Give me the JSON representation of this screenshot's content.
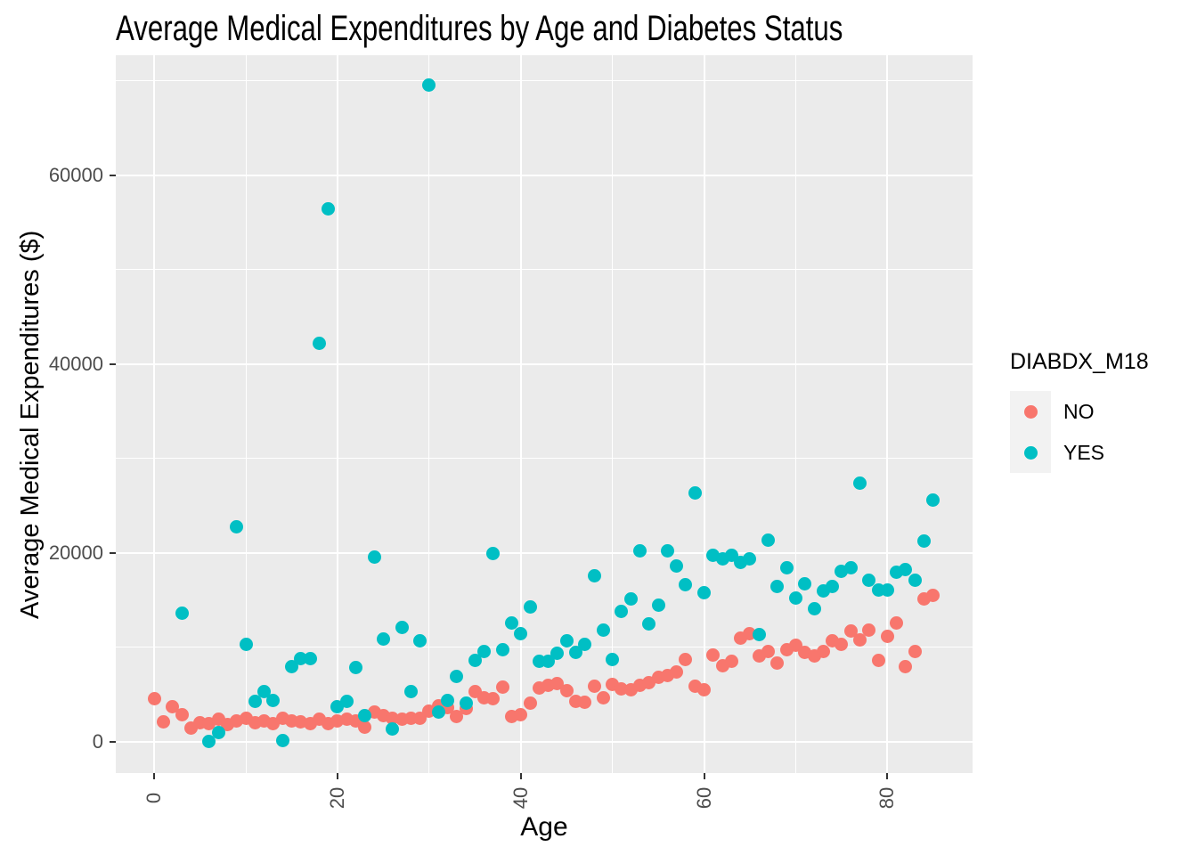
{
  "title": "Average Medical Expenditures by Age and Diabetes Status",
  "panel": {
    "background": "#EBEBEB",
    "gridline_color": "#ffffff"
  },
  "x_axis": {
    "label": "Age",
    "ticks": [
      0,
      20,
      40,
      60,
      80
    ],
    "tick_labels": [
      "0",
      "20",
      "40",
      "60",
      "80"
    ],
    "minor_ticks": [
      10,
      30,
      50,
      70
    ],
    "range": [
      -4.2,
      89.3
    ]
  },
  "y_axis": {
    "label": "Average Medical Expenditures ($)",
    "ticks": [
      0,
      20000,
      40000,
      60000
    ],
    "tick_labels": [
      "0",
      "20000",
      "40000",
      "60000"
    ],
    "minor_ticks": [
      10000,
      30000,
      50000,
      70000
    ],
    "range": [
      -3300,
      72700
    ]
  },
  "legend": {
    "title": "DIABDX_M18",
    "items": [
      {
        "label": "NO",
        "color": "#F8766D"
      },
      {
        "label": "YES",
        "color": "#00BFC4"
      }
    ]
  },
  "chart_data": {
    "type": "scatter",
    "title": "Average Medical Expenditures by Age and Diabetes Status",
    "xlabel": "Age",
    "ylabel": "Average Medical Expenditures ($)",
    "xlim": [
      -4.2,
      89.3
    ],
    "ylim": [
      -3300,
      72700
    ],
    "grid": true,
    "legend_position": "right",
    "legend_title": "DIABDX_M18",
    "series": [
      {
        "name": "NO",
        "color": "#F8766D",
        "points": [
          [
            0,
            4600
          ],
          [
            1,
            2100
          ],
          [
            2,
            3700
          ],
          [
            3,
            2900
          ],
          [
            4,
            1500
          ],
          [
            5,
            2000
          ],
          [
            6,
            1900
          ],
          [
            7,
            2400
          ],
          [
            8,
            1800
          ],
          [
            9,
            2200
          ],
          [
            10,
            2500
          ],
          [
            11,
            2000
          ],
          [
            12,
            2200
          ],
          [
            13,
            1900
          ],
          [
            14,
            2500
          ],
          [
            15,
            2200
          ],
          [
            16,
            2100
          ],
          [
            17,
            1900
          ],
          [
            18,
            2400
          ],
          [
            19,
            1900
          ],
          [
            20,
            2200
          ],
          [
            21,
            2400
          ],
          [
            22,
            2200
          ],
          [
            23,
            1600
          ],
          [
            24,
            3200
          ],
          [
            25,
            2800
          ],
          [
            26,
            2500
          ],
          [
            27,
            2400
          ],
          [
            28,
            2500
          ],
          [
            29,
            2500
          ],
          [
            30,
            3300
          ],
          [
            31,
            3800
          ],
          [
            32,
            3600
          ],
          [
            33,
            2700
          ],
          [
            34,
            3500
          ],
          [
            35,
            5300
          ],
          [
            36,
            4700
          ],
          [
            37,
            4600
          ],
          [
            38,
            5800
          ],
          [
            39,
            2700
          ],
          [
            40,
            2900
          ],
          [
            41,
            4100
          ],
          [
            42,
            5700
          ],
          [
            43,
            6000
          ],
          [
            44,
            6200
          ],
          [
            45,
            5400
          ],
          [
            46,
            4300
          ],
          [
            47,
            4200
          ],
          [
            48,
            5900
          ],
          [
            49,
            4700
          ],
          [
            50,
            6100
          ],
          [
            51,
            5600
          ],
          [
            52,
            5500
          ],
          [
            53,
            6000
          ],
          [
            54,
            6300
          ],
          [
            55,
            6800
          ],
          [
            56,
            7000
          ],
          [
            57,
            7400
          ],
          [
            58,
            8700
          ],
          [
            59,
            5900
          ],
          [
            60,
            5500
          ],
          [
            61,
            9200
          ],
          [
            62,
            8100
          ],
          [
            63,
            8500
          ],
          [
            64,
            11000
          ],
          [
            65,
            11500
          ],
          [
            66,
            9100
          ],
          [
            67,
            9600
          ],
          [
            68,
            8300
          ],
          [
            69,
            9800
          ],
          [
            70,
            10200
          ],
          [
            71,
            9500
          ],
          [
            72,
            9100
          ],
          [
            73,
            9600
          ],
          [
            74,
            10700
          ],
          [
            75,
            10300
          ],
          [
            76,
            11700
          ],
          [
            77,
            10800
          ],
          [
            78,
            11800
          ],
          [
            79,
            8600
          ],
          [
            80,
            11200
          ],
          [
            81,
            12600
          ],
          [
            82,
            8000
          ],
          [
            83,
            9600
          ],
          [
            84,
            15100
          ],
          [
            85,
            15500
          ]
        ]
      },
      {
        "name": "YES",
        "color": "#00BFC4",
        "points": [
          [
            3,
            13600
          ],
          [
            6,
            50
          ],
          [
            7,
            1000
          ],
          [
            9,
            22800
          ],
          [
            10,
            10300
          ],
          [
            11,
            4300
          ],
          [
            12,
            5300
          ],
          [
            13,
            4400
          ],
          [
            14,
            100
          ],
          [
            15,
            8000
          ],
          [
            16,
            8800
          ],
          [
            17,
            8800
          ],
          [
            18,
            42200
          ],
          [
            19,
            56400
          ],
          [
            20,
            3700
          ],
          [
            21,
            4300
          ],
          [
            22,
            7900
          ],
          [
            23,
            2800
          ],
          [
            24,
            19600
          ],
          [
            25,
            10900
          ],
          [
            26,
            1400
          ],
          [
            27,
            12100
          ],
          [
            28,
            5300
          ],
          [
            29,
            10700
          ],
          [
            30,
            69500
          ],
          [
            31,
            3200
          ],
          [
            32,
            4400
          ],
          [
            33,
            6900
          ],
          [
            34,
            4100
          ],
          [
            35,
            8600
          ],
          [
            36,
            9600
          ],
          [
            37,
            19900
          ],
          [
            38,
            9800
          ],
          [
            39,
            12600
          ],
          [
            40,
            11500
          ],
          [
            41,
            14300
          ],
          [
            42,
            8500
          ],
          [
            43,
            8500
          ],
          [
            44,
            9400
          ],
          [
            45,
            10700
          ],
          [
            46,
            9500
          ],
          [
            47,
            10300
          ],
          [
            48,
            17600
          ],
          [
            49,
            11800
          ],
          [
            50,
            8700
          ],
          [
            51,
            13800
          ],
          [
            52,
            15100
          ],
          [
            53,
            20200
          ],
          [
            54,
            12500
          ],
          [
            55,
            14500
          ],
          [
            56,
            20200
          ],
          [
            57,
            18600
          ],
          [
            58,
            16600
          ],
          [
            59,
            26400
          ],
          [
            60,
            15800
          ],
          [
            61,
            19800
          ],
          [
            62,
            19400
          ],
          [
            63,
            19800
          ],
          [
            64,
            19000
          ],
          [
            65,
            19400
          ],
          [
            66,
            11400
          ],
          [
            67,
            21400
          ],
          [
            68,
            16500
          ],
          [
            69,
            18400
          ],
          [
            70,
            15200
          ],
          [
            71,
            16700
          ],
          [
            72,
            14100
          ],
          [
            73,
            16000
          ],
          [
            74,
            16500
          ],
          [
            75,
            18100
          ],
          [
            76,
            18400
          ],
          [
            77,
            27400
          ],
          [
            78,
            17100
          ],
          [
            79,
            16100
          ],
          [
            80,
            16100
          ],
          [
            81,
            18000
          ],
          [
            82,
            18200
          ],
          [
            83,
            17100
          ],
          [
            84,
            21300
          ],
          [
            85,
            25600
          ]
        ]
      }
    ]
  }
}
